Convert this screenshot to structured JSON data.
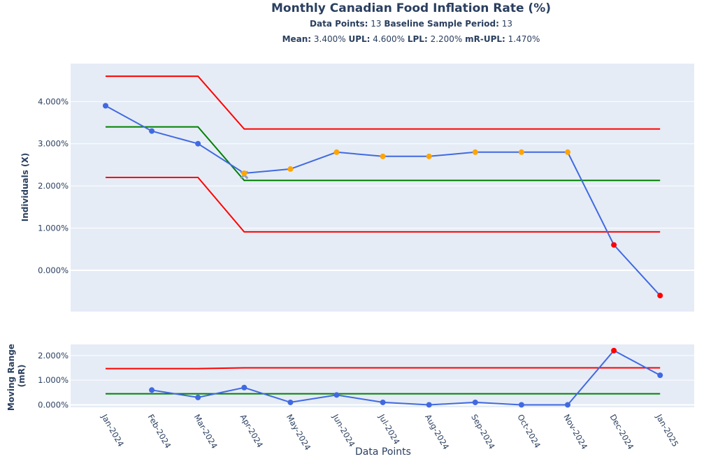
{
  "title": "Monthly Canadian Food Inflation Rate (%)",
  "subtitle": {
    "line1": [
      {
        "label": "Data Points:",
        "value": " 13 "
      },
      {
        "label": "Baseline Sample Period:",
        "value": " 13"
      }
    ],
    "line2": [
      {
        "label": "Mean:",
        "value": " 3.400% "
      },
      {
        "label": "UPL:",
        "value": " 4.600% "
      },
      {
        "label": "LPL:",
        "value": " 2.200% "
      },
      {
        "label": "mR-UPL:",
        "value": " 1.470%"
      }
    ]
  },
  "colors": {
    "plot_bg": "#e5ecf6",
    "data": "#4169e1",
    "limit": "#ff0000",
    "center": "#008000",
    "signal_orange": "#ffa500",
    "signal_red": "#ff0000",
    "grid": "#ffffff"
  },
  "chart_data": [
    {
      "type": "line",
      "name": "individuals",
      "ylabel": "Individuals (X)",
      "categories": [
        "Jan-2024",
        "Feb-2024",
        "Mar-2024",
        "Apr-2024",
        "May-2024",
        "Jun-2024",
        "Jul-2024",
        "Aug-2024",
        "Sep-2024",
        "Oct-2024",
        "Nov-2024",
        "Dec-2024",
        "Jan-2025"
      ],
      "values": [
        3.9,
        3.3,
        3.0,
        2.3,
        2.4,
        2.8,
        2.7,
        2.7,
        2.8,
        2.8,
        2.8,
        0.6,
        -0.6
      ],
      "point_colors": [
        "data",
        "data",
        "data",
        "signal_orange",
        "signal_orange",
        "signal_orange",
        "signal_orange",
        "signal_orange",
        "signal_orange",
        "signal_orange",
        "signal_orange",
        "signal_red",
        "signal_red"
      ],
      "step_marker_index": 3,
      "upl": [
        4.6,
        4.6,
        4.6,
        3.35,
        3.35,
        3.35,
        3.35,
        3.35,
        3.35,
        3.35,
        3.35,
        3.35,
        3.35
      ],
      "mean": [
        3.4,
        3.4,
        3.4,
        2.13,
        2.13,
        2.13,
        2.13,
        2.13,
        2.13,
        2.13,
        2.13,
        2.13,
        2.13
      ],
      "lpl": [
        2.2,
        2.2,
        2.2,
        0.91,
        0.91,
        0.91,
        0.91,
        0.91,
        0.91,
        0.91,
        0.91,
        0.91,
        0.91
      ],
      "yticks": [
        0,
        1,
        2,
        3,
        4
      ],
      "ytick_labels": [
        "0.000%",
        "1.000%",
        "2.000%",
        "3.000%",
        "4.000%"
      ],
      "ylim": [
        -0.98,
        4.9
      ]
    },
    {
      "type": "line",
      "name": "moving_range",
      "ylabel": "Moving Range (mR)",
      "categories": [
        "Jan-2024",
        "Feb-2024",
        "Mar-2024",
        "Apr-2024",
        "May-2024",
        "Jun-2024",
        "Jul-2024",
        "Aug-2024",
        "Sep-2024",
        "Oct-2024",
        "Nov-2024",
        "Dec-2024",
        "Jan-2025"
      ],
      "values": [
        null,
        0.6,
        0.3,
        0.7,
        0.1,
        0.4,
        0.1,
        0.0,
        0.1,
        0.0,
        0.0,
        2.2,
        1.2
      ],
      "point_colors": [
        null,
        "data",
        "data",
        "data",
        "data",
        "data",
        "data",
        "data",
        "data",
        "data",
        "data",
        "signal_red",
        "data"
      ],
      "url": [
        1.47,
        1.47,
        1.47,
        1.5,
        1.5,
        1.5,
        1.5,
        1.5,
        1.5,
        1.5,
        1.5,
        1.5,
        1.5
      ],
      "center": [
        0.45,
        0.45,
        0.45,
        0.45,
        0.45,
        0.45,
        0.45,
        0.45,
        0.45,
        0.45,
        0.45,
        0.45,
        0.45
      ],
      "yticks": [
        0,
        1,
        2
      ],
      "ytick_labels": [
        "0.000%",
        "1.000%",
        "2.000%"
      ],
      "ylim": [
        -0.1,
        2.45
      ]
    }
  ],
  "xlabel": "Data Points"
}
